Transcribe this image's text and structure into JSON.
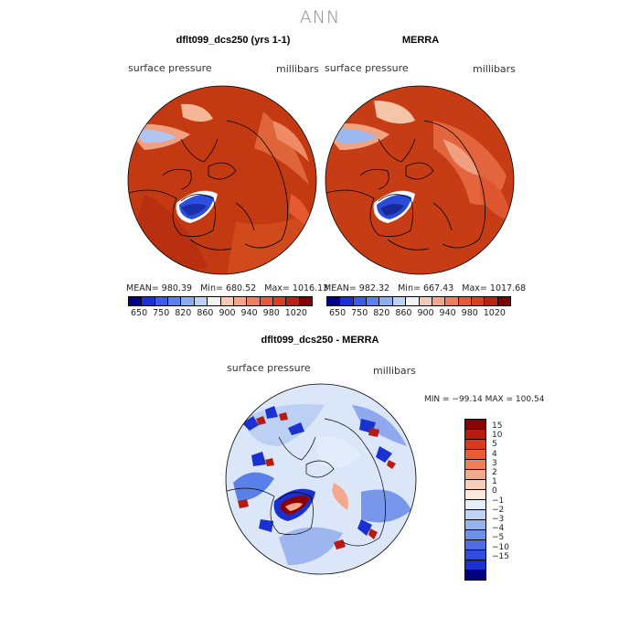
{
  "title": "ANN",
  "panels": [
    {
      "title": "dflt099_dcs250 (yrs 1-1)",
      "left_label": "surface pressure",
      "right_label": "millibars",
      "stats": {
        "mean_label": "MEAN=",
        "mean": "980.39",
        "min_label": "Min=",
        "min": "680.52",
        "max_label": "Max=",
        "max": "1016.13"
      }
    },
    {
      "title": "MERRA",
      "left_label": "surface pressure",
      "right_label": "millibars",
      "stats": {
        "mean_label": "MEAN=",
        "mean": "982.32",
        "min_label": "Min=",
        "min": "667.43",
        "max_label": "Max=",
        "max": "1017.68"
      }
    }
  ],
  "colorbar": {
    "colors": [
      "#00008b",
      "#1a2fd6",
      "#3b5bea",
      "#5a82ef",
      "#89aef2",
      "#bcd2f5",
      "#f2f2f2",
      "#f7c8b4",
      "#f4a58a",
      "#ee7e5e",
      "#e65a3a",
      "#d9401f",
      "#b8240f",
      "#7f0000"
    ],
    "ticks": [
      "650",
      "750",
      "820",
      "860",
      "900",
      "940",
      "980",
      "1020"
    ]
  },
  "diff_panel": {
    "title": "dflt099_dcs250 - MERRA",
    "left_label": "surface pressure",
    "right_label": "millibars",
    "minmax": "MIN = −99.14  MAX = 100.54",
    "colorbar": {
      "colors": [
        "#8b0000",
        "#b81a0f",
        "#d93a1f",
        "#e95a35",
        "#f07f5c",
        "#f4a98c",
        "#f8cdb8",
        "#fbe8dd",
        "#e3ecfb",
        "#bed2f5",
        "#96b3f0",
        "#6c8fea",
        "#4d6ee3",
        "#2f4ee0",
        "#1a30d0",
        "#00007f"
      ],
      "labels": [
        "15",
        "10",
        "5",
        "4",
        "3",
        "2",
        "1",
        "0",
        "−1",
        "−2",
        "−3",
        "−4",
        "−5",
        "−10",
        "−15"
      ]
    }
  }
}
